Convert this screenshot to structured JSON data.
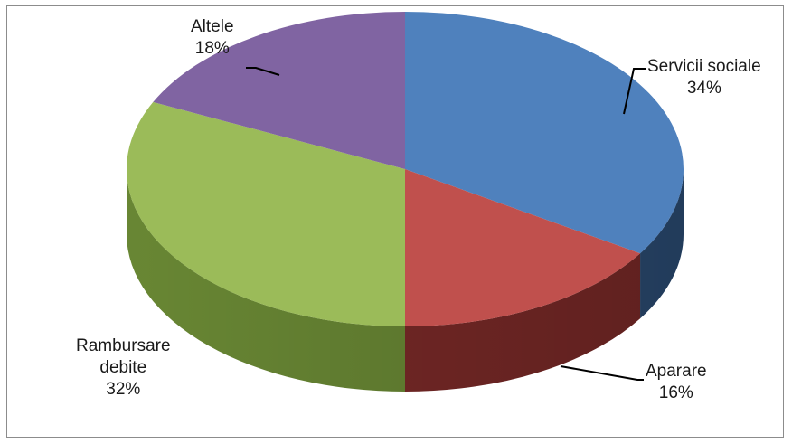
{
  "chart_data": {
    "type": "pie",
    "style": "3d",
    "title": "",
    "slices": [
      {
        "label": "Servicii sociale",
        "value": 34,
        "pct_label": "34%",
        "color": "#4f81bd",
        "side_color": "#2c4d75"
      },
      {
        "label": "Aparare",
        "value": 16,
        "pct_label": "16%",
        "color": "#c0504d",
        "side_color": "#7b2a28"
      },
      {
        "label": "Rambursare debite",
        "value": 32,
        "pct_label": "32%",
        "color": "#9bbb59",
        "side_color": "#6b8a35"
      },
      {
        "label": "Altele",
        "value": 18,
        "pct_label": "18%",
        "color": "#8064a2",
        "side_color": "#4f3d66"
      }
    ],
    "legend": "none",
    "data_labels": "outside with leader lines"
  },
  "labels": {
    "servicii": {
      "line1": "Servicii sociale",
      "pct": "34%"
    },
    "aparare": {
      "line1": "Aparare",
      "pct": "16%"
    },
    "rambursare": {
      "line1": "Rambursare",
      "line2": "debite",
      "pct": "32%"
    },
    "altele": {
      "line1": "Altele",
      "pct": "18%"
    }
  }
}
